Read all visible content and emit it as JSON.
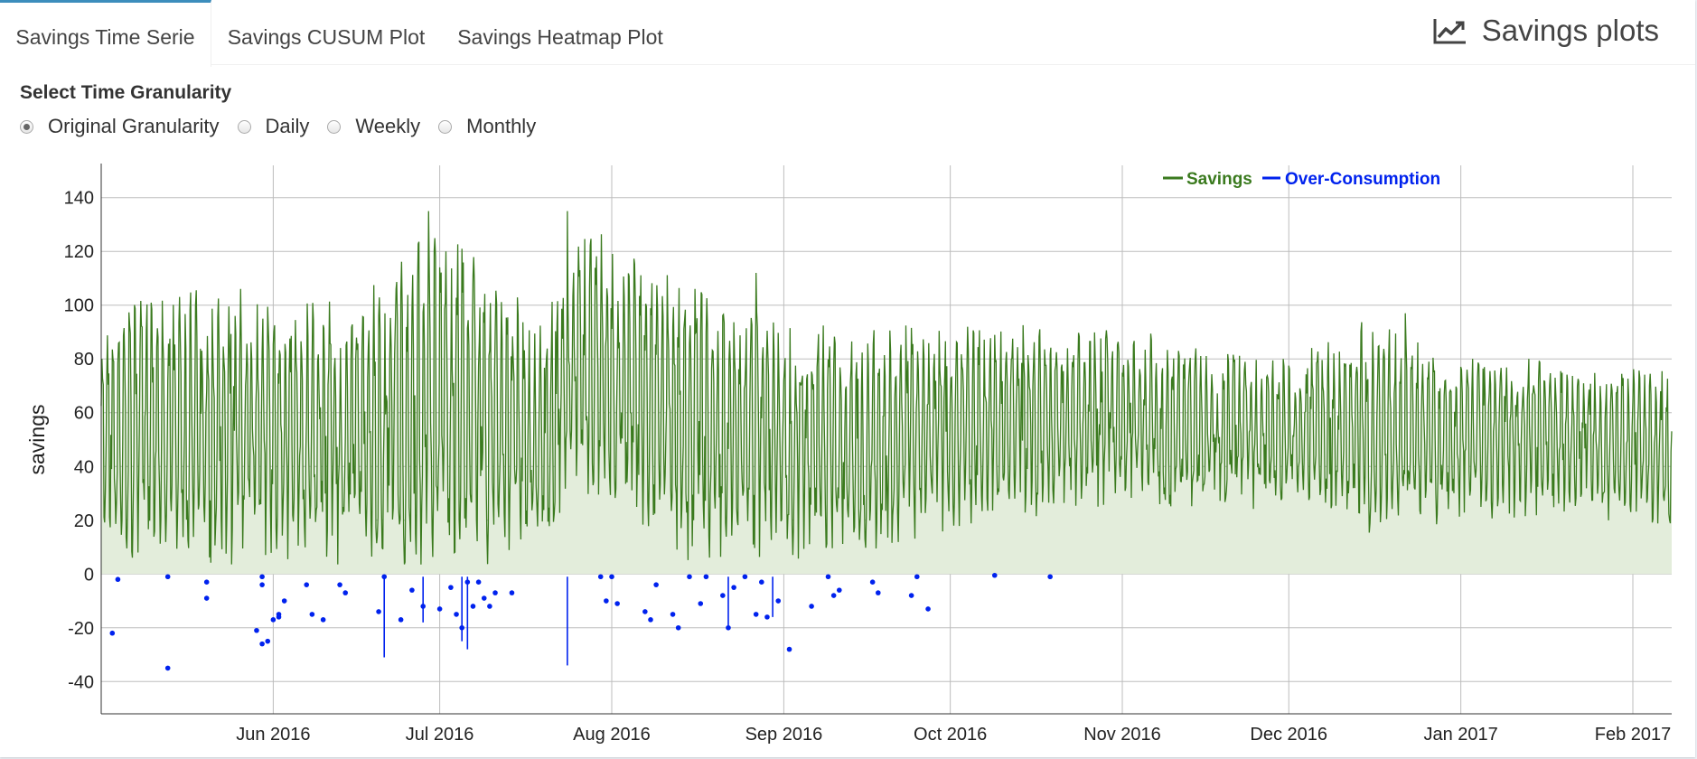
{
  "tabs": [
    {
      "label": "Savings Time Serie",
      "active": true
    },
    {
      "label": "Savings CUSUM Plot",
      "active": false
    },
    {
      "label": "Savings Heatmap Plot",
      "active": false
    }
  ],
  "box_title": {
    "label": "Savings plots",
    "icon": "line-chart-icon"
  },
  "granularity": {
    "label": "Select Time Granularity",
    "options": [
      "Original Granularity",
      "Daily",
      "Weekly",
      "Monthly"
    ],
    "selected": "Original Granularity"
  },
  "colors": {
    "accent": "#3c8dbc",
    "savings": "#3a7a1e",
    "savings_fill": "#e3eddb",
    "over_consumption": "#0022ee"
  },
  "chart_data": {
    "type": "line",
    "ylabel": "savings",
    "ylim": [
      -52,
      152
    ],
    "y_ticks": [
      -40,
      -20,
      0,
      20,
      40,
      60,
      80,
      100,
      120,
      140
    ],
    "x_range": [
      "2016-05-01",
      "2017-02-08"
    ],
    "x_ticks": [
      "Jun 2016",
      "Jul 2016",
      "Aug 2016",
      "Sep 2016",
      "Oct 2016",
      "Nov 2016",
      "Dec 2016",
      "Jan 2017",
      "Feb 2017"
    ],
    "grid": true,
    "legend_position": "top-right",
    "series": [
      {
        "name": "Savings",
        "style": "line-area",
        "color": "#3a7a1e",
        "envelope_x": [
          "2016-05-01",
          "2016-05-15",
          "2016-06-01",
          "2016-06-15",
          "2016-06-29",
          "2016-07-08",
          "2016-07-20",
          "2016-07-27",
          "2016-08-15",
          "2016-09-01",
          "2016-09-15",
          "2016-10-01",
          "2016-10-15",
          "2016-11-01",
          "2016-11-15",
          "2016-12-01",
          "2016-12-15",
          "2017-01-01",
          "2017-01-15",
          "2017-02-01",
          "2017-02-08"
        ],
        "envelope_low": [
          5,
          2,
          3,
          5,
          2,
          4,
          5,
          30,
          5,
          5,
          3,
          15,
          20,
          25,
          25,
          25,
          15,
          20,
          20,
          20,
          12
        ],
        "envelope_high": [
          100,
          108,
          105,
          105,
          130,
          120,
          95,
          130,
          110,
          95,
          90,
          95,
          95,
          92,
          85,
          80,
          95,
          80,
          80,
          78,
          75
        ],
        "notable_peaks": [
          {
            "x": "2016-06-29",
            "y": 135
          },
          {
            "x": "2016-07-05",
            "y": 121
          },
          {
            "x": "2016-07-24",
            "y": 135
          },
          {
            "x": "2016-08-27",
            "y": 112
          },
          {
            "x": "2016-12-22",
            "y": 97
          }
        ]
      },
      {
        "name": "Over-Consumption",
        "style": "points",
        "color": "#0022ee",
        "x": [
          "2016-05-03",
          "2016-05-04",
          "2016-05-13",
          "2016-05-13",
          "2016-05-20",
          "2016-05-20",
          "2016-05-29",
          "2016-05-30",
          "2016-05-30",
          "2016-05-30",
          "2016-05-31",
          "2016-06-01",
          "2016-06-02",
          "2016-06-02",
          "2016-06-03",
          "2016-06-07",
          "2016-06-08",
          "2016-06-10",
          "2016-06-13",
          "2016-06-14",
          "2016-06-20",
          "2016-06-21",
          "2016-06-24",
          "2016-06-26",
          "2016-06-28",
          "2016-07-01",
          "2016-07-03",
          "2016-07-04",
          "2016-07-05",
          "2016-07-06",
          "2016-07-07",
          "2016-07-08",
          "2016-07-09",
          "2016-07-10",
          "2016-07-11",
          "2016-07-14",
          "2016-07-30",
          "2016-07-31",
          "2016-08-01",
          "2016-08-02",
          "2016-08-07",
          "2016-08-08",
          "2016-08-09",
          "2016-08-12",
          "2016-08-13",
          "2016-08-15",
          "2016-08-17",
          "2016-08-18",
          "2016-08-21",
          "2016-08-22",
          "2016-08-23",
          "2016-08-25",
          "2016-08-27",
          "2016-08-28",
          "2016-08-29",
          "2016-08-31",
          "2016-09-02",
          "2016-09-06",
          "2016-09-09",
          "2016-09-10",
          "2016-09-11",
          "2016-09-17",
          "2016-09-18",
          "2016-09-24",
          "2016-09-25",
          "2016-09-27",
          "2016-10-09",
          "2016-10-19"
        ],
        "y": [
          -22,
          -2,
          -35,
          -1,
          -3,
          -9,
          -21,
          -26,
          -4,
          -1,
          -25,
          -17,
          -16,
          -15,
          -10,
          -4,
          -15,
          -17,
          -4,
          -7,
          -14,
          -1,
          -17,
          -6,
          -12,
          -13,
          -5,
          -15,
          -20,
          -3,
          -12,
          -3,
          -9,
          -12,
          -7,
          -7,
          -1,
          -10,
          -1,
          -11,
          -14,
          -17,
          -4,
          -15,
          -20,
          -1,
          -11,
          -1,
          -8,
          -20,
          -5,
          -1,
          -15,
          -3,
          -16,
          -10,
          -28,
          -12,
          -1,
          -8,
          -6,
          -3,
          -7,
          -8,
          -1,
          -13,
          -0.5,
          -1
        ],
        "spikes": [
          {
            "x": "2016-06-21",
            "y": -31
          },
          {
            "x": "2016-06-28",
            "y": -18
          },
          {
            "x": "2016-07-05",
            "y": -25
          },
          {
            "x": "2016-07-06",
            "y": -28
          },
          {
            "x": "2016-07-24",
            "y": -34
          },
          {
            "x": "2016-08-22",
            "y": -20
          },
          {
            "x": "2016-08-30",
            "y": -16
          }
        ]
      }
    ]
  }
}
